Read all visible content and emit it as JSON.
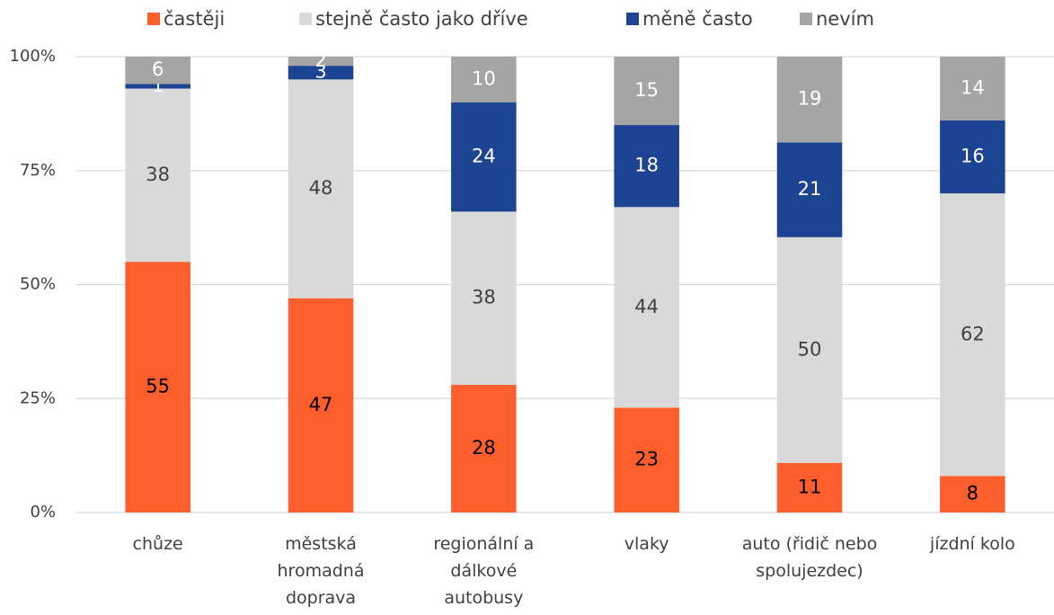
{
  "chart_data": {
    "type": "bar",
    "stacked": "percent",
    "categories": [
      "chůze",
      "městská hromadná doprava",
      "regionální a dálkové autobusy",
      "vlaky",
      "auto (řidič nebo spolujezdec)",
      "jízdní kolo"
    ],
    "series": [
      {
        "name": "častěji",
        "color": "#fd5f2c",
        "values": [
          55,
          47,
          28,
          23,
          11,
          8
        ]
      },
      {
        "name": "stejně často jako dříve",
        "color": "#d9d9d9",
        "values": [
          38,
          48,
          38,
          44,
          50,
          62
        ]
      },
      {
        "name": "měně často",
        "color": "#1d4393",
        "values": [
          1,
          3,
          24,
          18,
          21,
          16
        ]
      },
      {
        "name": "nevím",
        "color": "#a5a5a5",
        "values": [
          6,
          2,
          10,
          15,
          19,
          14
        ]
      }
    ],
    "ylim": [
      0,
      100
    ],
    "yticks": [
      {
        "value": 0,
        "label": "0%"
      },
      {
        "value": 25,
        "label": "25%"
      },
      {
        "value": 50,
        "label": "50%"
      },
      {
        "value": 75,
        "label": "75%"
      },
      {
        "value": 100,
        "label": "100%"
      }
    ],
    "grid": true,
    "legend": "top"
  }
}
